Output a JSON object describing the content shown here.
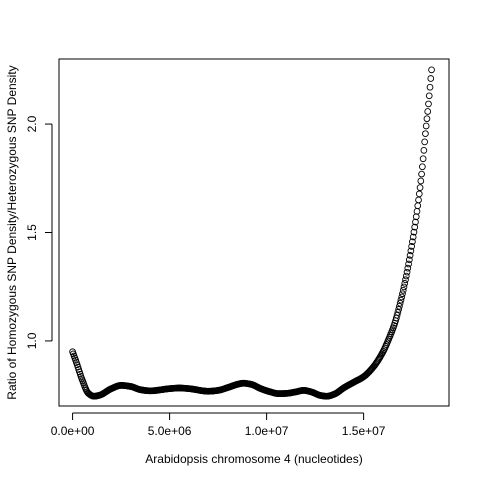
{
  "chart_data": {
    "type": "scatter",
    "xlabel": "Arabidopsis chromosome 4 (nucleotides)",
    "ylabel": "Ratio of Homozygous SNP Density/Heterozygous SNP Density",
    "xlim": [
      -700000,
      19400000
    ],
    "ylim": [
      0.7,
      2.3
    ],
    "grid": false,
    "marker": "open-circle",
    "x_ticks": [
      {
        "value": 0,
        "label": "0.0e+00"
      },
      {
        "value": 5000000,
        "label": "5.0e+06"
      },
      {
        "value": 10000000,
        "label": "1.0e+07"
      },
      {
        "value": 15000000,
        "label": "1.5e+07"
      }
    ],
    "y_ticks": [
      {
        "value": 1.0,
        "label": "1.0"
      },
      {
        "value": 1.5,
        "label": "1.5"
      },
      {
        "value": 2.0,
        "label": "2.0"
      }
    ],
    "curve": {
      "x_start": 0,
      "x_end": 18500000,
      "n_points": 470,
      "x": [
        0,
        200000,
        500000,
        800000,
        1100000,
        1400000,
        2000000,
        2500000,
        3000000,
        3500000,
        4000000,
        5000000,
        5500000,
        6000000,
        7000000,
        7500000,
        8000000,
        8500000,
        8800000,
        9200000,
        9700000,
        10200000,
        10600000,
        11000000,
        11500000,
        11900000,
        12300000,
        12800000,
        13100000,
        13500000,
        14000000,
        14500000,
        15000000,
        15500000,
        16000000,
        16300000,
        16600000,
        16900000,
        17200000,
        17500000,
        17800000,
        18000000,
        18200000,
        18350000,
        18500000
      ],
      "y": [
        0.95,
        0.9,
        0.82,
        0.76,
        0.745,
        0.75,
        0.78,
        0.795,
        0.79,
        0.775,
        0.77,
        0.78,
        0.783,
        0.78,
        0.768,
        0.772,
        0.785,
        0.8,
        0.805,
        0.8,
        0.78,
        0.765,
        0.757,
        0.758,
        0.765,
        0.772,
        0.765,
        0.748,
        0.745,
        0.755,
        0.785,
        0.81,
        0.835,
        0.88,
        0.95,
        1.01,
        1.08,
        1.18,
        1.3,
        1.45,
        1.63,
        1.78,
        1.97,
        2.1,
        2.25
      ]
    }
  }
}
